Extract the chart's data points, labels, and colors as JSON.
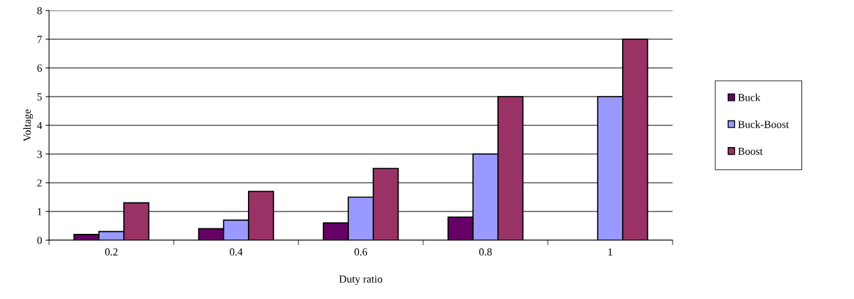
{
  "chart_data": {
    "type": "bar",
    "xlabel": "Duty ratio",
    "ylabel": "Voltage",
    "categories": [
      "0.2",
      "0.4",
      "0.6",
      "0.8",
      "1"
    ],
    "series": [
      {
        "name": "Buck",
        "color": "#660066",
        "values": [
          0.2,
          0.4,
          0.6,
          0.8,
          null
        ]
      },
      {
        "name": "Buck-Boost",
        "color": "#9999ff",
        "values": [
          0.3,
          0.7,
          1.5,
          3,
          5
        ]
      },
      {
        "name": "Boost",
        "color": "#993366",
        "values": [
          1.3,
          1.7,
          2.5,
          5,
          7
        ]
      }
    ],
    "ylim": [
      0,
      8
    ],
    "yticks": [
      0,
      1,
      2,
      3,
      4,
      5,
      6,
      7,
      8
    ],
    "grid": "y",
    "legend": "right"
  }
}
